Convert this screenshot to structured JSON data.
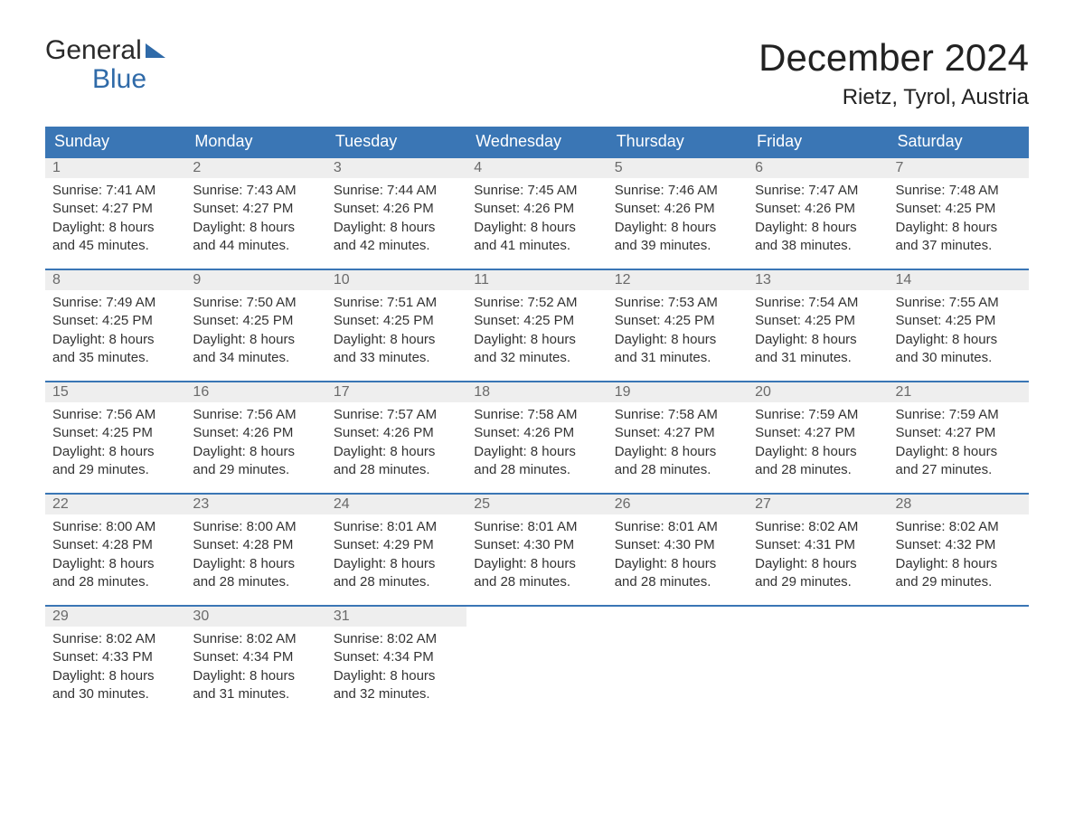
{
  "logo": {
    "line1": "General",
    "line2": "Blue"
  },
  "header": {
    "month_title": "December 2024",
    "location": "Rietz, Tyrol, Austria"
  },
  "colors": {
    "header_bg": "#3a76b5",
    "header_text": "#ffffff",
    "daynum_bg": "#eeeeee",
    "daynum_text": "#6a6a6a",
    "body_text": "#333333",
    "row_divider": "#3a76b5",
    "logo_accent": "#2f6aa8",
    "page_bg": "#ffffff"
  },
  "typography": {
    "month_title_fontsize": 42,
    "location_fontsize": 24,
    "weekday_fontsize": 18,
    "daynum_fontsize": 16,
    "body_fontsize": 15,
    "logo_fontsize": 30
  },
  "weekday_labels": [
    "Sunday",
    "Monday",
    "Tuesday",
    "Wednesday",
    "Thursday",
    "Friday",
    "Saturday"
  ],
  "weeks": [
    [
      {
        "num": "1",
        "sunrise": "Sunrise: 7:41 AM",
        "sunset": "Sunset: 4:27 PM",
        "d1": "Daylight: 8 hours",
        "d2": "and 45 minutes."
      },
      {
        "num": "2",
        "sunrise": "Sunrise: 7:43 AM",
        "sunset": "Sunset: 4:27 PM",
        "d1": "Daylight: 8 hours",
        "d2": "and 44 minutes."
      },
      {
        "num": "3",
        "sunrise": "Sunrise: 7:44 AM",
        "sunset": "Sunset: 4:26 PM",
        "d1": "Daylight: 8 hours",
        "d2": "and 42 minutes."
      },
      {
        "num": "4",
        "sunrise": "Sunrise: 7:45 AM",
        "sunset": "Sunset: 4:26 PM",
        "d1": "Daylight: 8 hours",
        "d2": "and 41 minutes."
      },
      {
        "num": "5",
        "sunrise": "Sunrise: 7:46 AM",
        "sunset": "Sunset: 4:26 PM",
        "d1": "Daylight: 8 hours",
        "d2": "and 39 minutes."
      },
      {
        "num": "6",
        "sunrise": "Sunrise: 7:47 AM",
        "sunset": "Sunset: 4:26 PM",
        "d1": "Daylight: 8 hours",
        "d2": "and 38 minutes."
      },
      {
        "num": "7",
        "sunrise": "Sunrise: 7:48 AM",
        "sunset": "Sunset: 4:25 PM",
        "d1": "Daylight: 8 hours",
        "d2": "and 37 minutes."
      }
    ],
    [
      {
        "num": "8",
        "sunrise": "Sunrise: 7:49 AM",
        "sunset": "Sunset: 4:25 PM",
        "d1": "Daylight: 8 hours",
        "d2": "and 35 minutes."
      },
      {
        "num": "9",
        "sunrise": "Sunrise: 7:50 AM",
        "sunset": "Sunset: 4:25 PM",
        "d1": "Daylight: 8 hours",
        "d2": "and 34 minutes."
      },
      {
        "num": "10",
        "sunrise": "Sunrise: 7:51 AM",
        "sunset": "Sunset: 4:25 PM",
        "d1": "Daylight: 8 hours",
        "d2": "and 33 minutes."
      },
      {
        "num": "11",
        "sunrise": "Sunrise: 7:52 AM",
        "sunset": "Sunset: 4:25 PM",
        "d1": "Daylight: 8 hours",
        "d2": "and 32 minutes."
      },
      {
        "num": "12",
        "sunrise": "Sunrise: 7:53 AM",
        "sunset": "Sunset: 4:25 PM",
        "d1": "Daylight: 8 hours",
        "d2": "and 31 minutes."
      },
      {
        "num": "13",
        "sunrise": "Sunrise: 7:54 AM",
        "sunset": "Sunset: 4:25 PM",
        "d1": "Daylight: 8 hours",
        "d2": "and 31 minutes."
      },
      {
        "num": "14",
        "sunrise": "Sunrise: 7:55 AM",
        "sunset": "Sunset: 4:25 PM",
        "d1": "Daylight: 8 hours",
        "d2": "and 30 minutes."
      }
    ],
    [
      {
        "num": "15",
        "sunrise": "Sunrise: 7:56 AM",
        "sunset": "Sunset: 4:25 PM",
        "d1": "Daylight: 8 hours",
        "d2": "and 29 minutes."
      },
      {
        "num": "16",
        "sunrise": "Sunrise: 7:56 AM",
        "sunset": "Sunset: 4:26 PM",
        "d1": "Daylight: 8 hours",
        "d2": "and 29 minutes."
      },
      {
        "num": "17",
        "sunrise": "Sunrise: 7:57 AM",
        "sunset": "Sunset: 4:26 PM",
        "d1": "Daylight: 8 hours",
        "d2": "and 28 minutes."
      },
      {
        "num": "18",
        "sunrise": "Sunrise: 7:58 AM",
        "sunset": "Sunset: 4:26 PM",
        "d1": "Daylight: 8 hours",
        "d2": "and 28 minutes."
      },
      {
        "num": "19",
        "sunrise": "Sunrise: 7:58 AM",
        "sunset": "Sunset: 4:27 PM",
        "d1": "Daylight: 8 hours",
        "d2": "and 28 minutes."
      },
      {
        "num": "20",
        "sunrise": "Sunrise: 7:59 AM",
        "sunset": "Sunset: 4:27 PM",
        "d1": "Daylight: 8 hours",
        "d2": "and 28 minutes."
      },
      {
        "num": "21",
        "sunrise": "Sunrise: 7:59 AM",
        "sunset": "Sunset: 4:27 PM",
        "d1": "Daylight: 8 hours",
        "d2": "and 27 minutes."
      }
    ],
    [
      {
        "num": "22",
        "sunrise": "Sunrise: 8:00 AM",
        "sunset": "Sunset: 4:28 PM",
        "d1": "Daylight: 8 hours",
        "d2": "and 28 minutes."
      },
      {
        "num": "23",
        "sunrise": "Sunrise: 8:00 AM",
        "sunset": "Sunset: 4:28 PM",
        "d1": "Daylight: 8 hours",
        "d2": "and 28 minutes."
      },
      {
        "num": "24",
        "sunrise": "Sunrise: 8:01 AM",
        "sunset": "Sunset: 4:29 PM",
        "d1": "Daylight: 8 hours",
        "d2": "and 28 minutes."
      },
      {
        "num": "25",
        "sunrise": "Sunrise: 8:01 AM",
        "sunset": "Sunset: 4:30 PM",
        "d1": "Daylight: 8 hours",
        "d2": "and 28 minutes."
      },
      {
        "num": "26",
        "sunrise": "Sunrise: 8:01 AM",
        "sunset": "Sunset: 4:30 PM",
        "d1": "Daylight: 8 hours",
        "d2": "and 28 minutes."
      },
      {
        "num": "27",
        "sunrise": "Sunrise: 8:02 AM",
        "sunset": "Sunset: 4:31 PM",
        "d1": "Daylight: 8 hours",
        "d2": "and 29 minutes."
      },
      {
        "num": "28",
        "sunrise": "Sunrise: 8:02 AM",
        "sunset": "Sunset: 4:32 PM",
        "d1": "Daylight: 8 hours",
        "d2": "and 29 minutes."
      }
    ],
    [
      {
        "num": "29",
        "sunrise": "Sunrise: 8:02 AM",
        "sunset": "Sunset: 4:33 PM",
        "d1": "Daylight: 8 hours",
        "d2": "and 30 minutes."
      },
      {
        "num": "30",
        "sunrise": "Sunrise: 8:02 AM",
        "sunset": "Sunset: 4:34 PM",
        "d1": "Daylight: 8 hours",
        "d2": "and 31 minutes."
      },
      {
        "num": "31",
        "sunrise": "Sunrise: 8:02 AM",
        "sunset": "Sunset: 4:34 PM",
        "d1": "Daylight: 8 hours",
        "d2": "and 32 minutes."
      },
      null,
      null,
      null,
      null
    ]
  ]
}
